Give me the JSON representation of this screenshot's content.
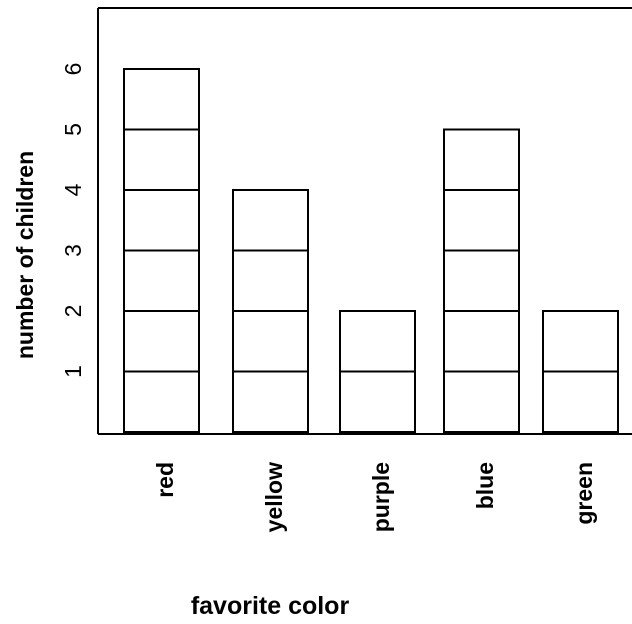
{
  "chart_data": {
    "type": "bar",
    "style": "stacked unit boxes (pictograph)",
    "categories": [
      "red",
      "yellow",
      "purple",
      "blue",
      "green"
    ],
    "values": [
      6,
      4,
      2,
      5,
      2
    ],
    "xlabel": "favorite color",
    "ylabel": "number of children",
    "yticks": [
      "1",
      "2",
      "3",
      "4",
      "5",
      "6"
    ],
    "ylim": [
      0,
      7
    ],
    "grid": false,
    "legend": "none",
    "colors": {
      "bar_fill": "#ffffff",
      "bar_stroke": "#000000",
      "axis": "#000000"
    }
  }
}
